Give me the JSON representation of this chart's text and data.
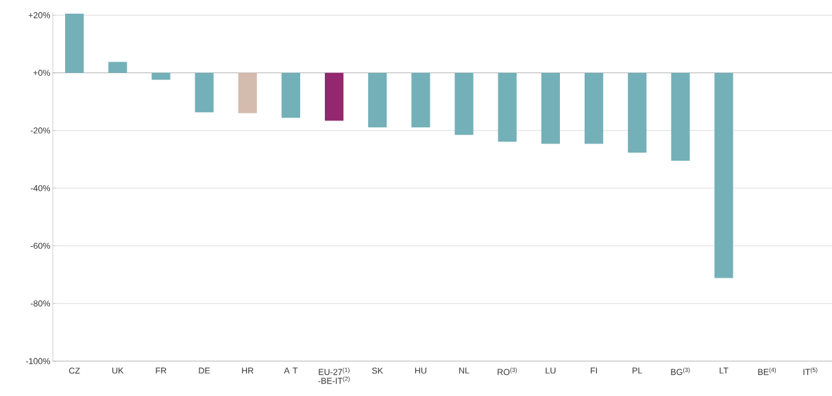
{
  "chart_data": {
    "type": "bar",
    "categories": [
      "CZ",
      "UK",
      "FR",
      "DE",
      "HR",
      "A T",
      "EU-27$^{(1)}$ -BE-IT$^{(2)}$",
      "SK",
      "HU",
      "NL",
      "RO$^{(3)}$",
      "LU",
      "FI",
      "PL",
      "BG$^{(3)}$",
      "LT",
      "BE$^{(4)}$",
      "IT$^{(5)}$"
    ],
    "values": [
      20.5,
      3.8,
      -2.4,
      -13.7,
      -14,
      -15.6,
      -16.6,
      -18.9,
      -18.9,
      -21.5,
      -23.9,
      -24.6,
      -24.6,
      -27.7,
      -30.5,
      -71.2,
      null,
      null
    ],
    "colors": [
      "#74b0b8",
      "#74b0b8",
      "#74b0b8",
      "#74b0b8",
      "#d3bbad",
      "#74b0b8",
      "#93286e",
      "#74b0b8",
      "#74b0b8",
      "#74b0b8",
      "#74b0b8",
      "#74b0b8",
      "#74b0b8",
      "#74b0b8",
      "#74b0b8",
      "#74b0b8",
      "#74b0b8",
      "#74b0b8"
    ],
    "ylim": [
      -100,
      21
    ],
    "yticks": [
      {
        "value": 20,
        "label": "+20%"
      },
      {
        "value": 0,
        "label": "+0%"
      },
      {
        "value": -20,
        "label": "-20%"
      },
      {
        "value": -40,
        "label": "-40%"
      },
      {
        "value": -60,
        "label": "-60%"
      },
      {
        "value": -80,
        "label": "-80%"
      },
      {
        "value": -100,
        "label": "-100%"
      }
    ],
    "grid": "y"
  }
}
